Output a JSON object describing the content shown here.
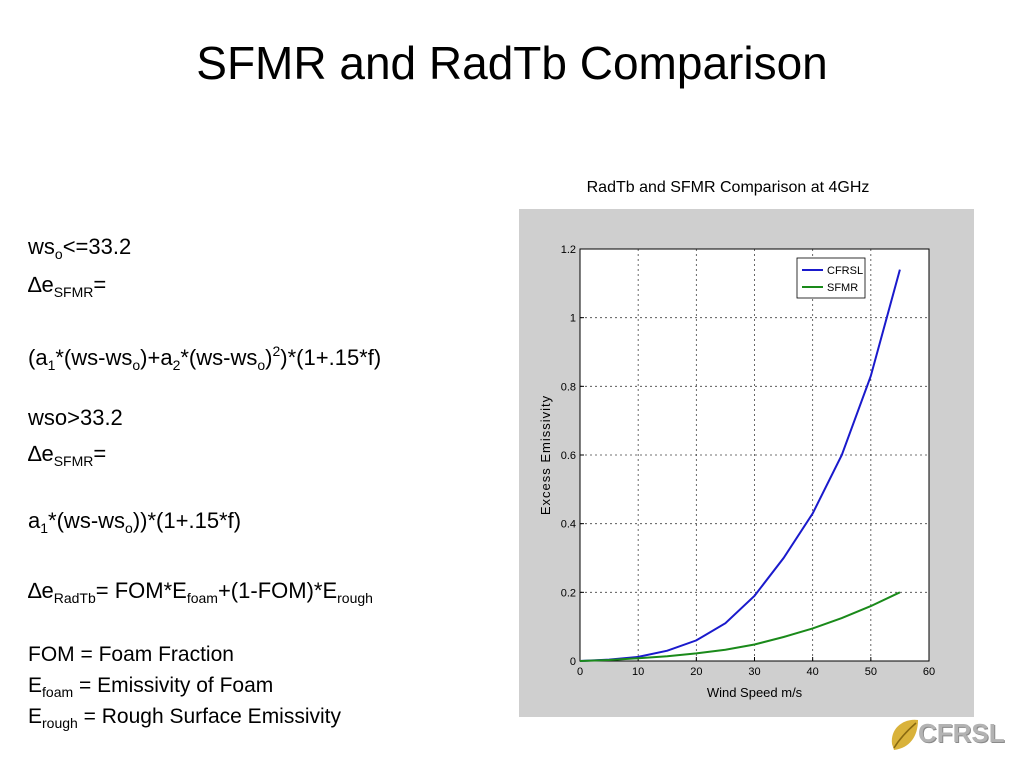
{
  "slide": {
    "title": "SFMR and RadTb Comparison"
  },
  "chart_caption": "RadTb and SFMR Comparison at 4GHz",
  "equations": {
    "cond1_base": "ws",
    "cond1_sub": "o",
    "cond1_rest": "<=33.2",
    "delta": "∆",
    "e": "e",
    "sfmr_sub": "SFMR",
    "eq_sign": "=",
    "f1_a": "(a",
    "f1_a_sub": "1",
    "f1_b": "*(ws-ws",
    "f1_b_sub": "o",
    "f1_c": ")+a",
    "f1_c_sub": "2",
    "f1_d": "*(ws-ws",
    "f1_d_sub": "o",
    "f1_e": ")",
    "f1_e_sup": "2",
    "f1_f": ")*(1+.15*f)",
    "cond2": "wso>33.2",
    "f2_a": "a",
    "f2_a_sub": "1",
    "f2_b": "*(ws-ws",
    "f2_b_sub": "o",
    "f2_c": "))*(1+.15*f)",
    "radtb_sub": "RadTb",
    "f3_a": "= FOM*E",
    "f3_a_sub": "foam",
    "f3_b": "+(1-FOM)*E",
    "f3_b_sub": "rough"
  },
  "notes": {
    "fom": "FOM = Foam Fraction",
    "efoam_base": "E",
    "efoam_sub": "foam",
    "efoam_rest": " = Emissivity of Foam",
    "erough_base": "E",
    "erough_sub": "rough",
    "erough_rest": " = Rough Surface Emissivity"
  },
  "logo": {
    "text": "CFRSL"
  },
  "colors": {
    "cfrsl": "#1a1acc",
    "sfmr": "#1a8a1a",
    "panel": "#cfcfcf"
  },
  "chart_data": {
    "type": "line",
    "title": "",
    "xlabel": "Wind Speed m/s",
    "ylabel": "Excess Emissivity",
    "xlim": [
      0,
      60
    ],
    "ylim": [
      0,
      1.2
    ],
    "xticks": [
      0,
      10,
      20,
      30,
      40,
      50,
      60
    ],
    "yticks": [
      0,
      0.2,
      0.4,
      0.6,
      0.8,
      1,
      1.2
    ],
    "xtick_labels": [
      "0",
      "10",
      "20",
      "30",
      "40",
      "50",
      "60"
    ],
    "ytick_labels": [
      "0",
      "0.2",
      "0.4",
      "0.6",
      "0.8",
      "1",
      "1.2"
    ],
    "grid": true,
    "legend_position": "top-right",
    "series": [
      {
        "name": "CFRSL",
        "x": [
          0,
          5,
          10,
          15,
          20,
          25,
          30,
          35,
          40,
          45,
          50,
          55
        ],
        "y": [
          0,
          0.004,
          0.012,
          0.03,
          0.06,
          0.11,
          0.19,
          0.3,
          0.43,
          0.6,
          0.83,
          1.14
        ]
      },
      {
        "name": "SFMR",
        "x": [
          0,
          5,
          10,
          15,
          20,
          25,
          30,
          35,
          40,
          45,
          50,
          55
        ],
        "y": [
          0,
          0.003,
          0.008,
          0.014,
          0.022,
          0.033,
          0.048,
          0.07,
          0.095,
          0.125,
          0.16,
          0.2
        ]
      }
    ]
  }
}
